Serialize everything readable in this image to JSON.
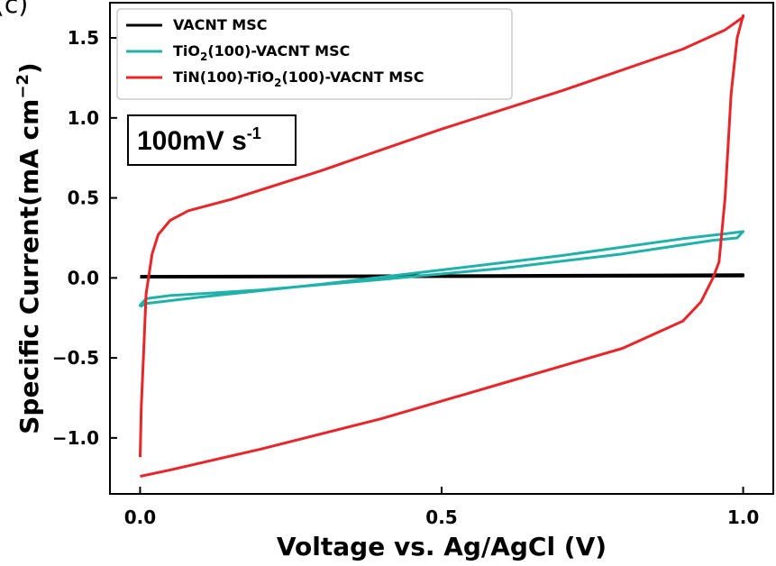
{
  "panel_label": "(c)",
  "chart_data": {
    "type": "line",
    "xlabel": "Voltage vs. Ag/AgCl (V)",
    "ylabel": {
      "main": "Specific Current(mA cm",
      "sup": "−2",
      "close": ")"
    },
    "xlim": [
      -0.05,
      1.05
    ],
    "ylim": [
      -1.35,
      1.72
    ],
    "xticks": [
      {
        "value": 0.0,
        "label": "0.0"
      },
      {
        "value": 0.5,
        "label": "0.5"
      },
      {
        "value": 1.0,
        "label": "1.0"
      }
    ],
    "yticks": [
      {
        "value": -1.0,
        "label": "−1.0"
      },
      {
        "value": -0.5,
        "label": "−0.5"
      },
      {
        "value": 0.0,
        "label": "0.0"
      },
      {
        "value": 0.5,
        "label": "0.5"
      },
      {
        "value": 1.0,
        "label": "1.0"
      },
      {
        "value": 1.5,
        "label": "1.5"
      }
    ],
    "grid": false,
    "legend_position": "top-left",
    "annotation": {
      "text": "100mV s",
      "sup": "-1"
    },
    "series": [
      {
        "name": "VACNT MSC",
        "legend": {
          "parts": [
            {
              "t": "VACNT MSC"
            }
          ]
        },
        "color": "#000000",
        "points": [
          [
            0.0,
            0.005
          ],
          [
            0.5,
            0.008
          ],
          [
            1.0,
            0.012
          ],
          [
            1.0,
            0.02
          ],
          [
            0.5,
            0.014
          ],
          [
            0.0,
            0.01
          ]
        ]
      },
      {
        "name": "TiO2(100)-VACNT MSC",
        "legend": {
          "parts": [
            {
              "t": "TiO"
            },
            {
              "t": "2",
              "sub": true
            },
            {
              "t": "(100)-VACNT MSC"
            }
          ]
        },
        "color": "#20B2AA",
        "points": [
          [
            0.0,
            -0.18
          ],
          [
            0.0,
            -0.17
          ],
          [
            0.01,
            -0.13
          ],
          [
            0.05,
            -0.11
          ],
          [
            0.2,
            -0.075
          ],
          [
            0.4,
            -0.01
          ],
          [
            0.6,
            0.06
          ],
          [
            0.8,
            0.15
          ],
          [
            0.95,
            0.235
          ],
          [
            0.99,
            0.25
          ],
          [
            1.0,
            0.29
          ],
          [
            0.98,
            0.28
          ],
          [
            0.9,
            0.245
          ],
          [
            0.7,
            0.14
          ],
          [
            0.5,
            0.05
          ],
          [
            0.3,
            -0.04
          ],
          [
            0.1,
            -0.12
          ],
          [
            0.01,
            -0.16
          ],
          [
            0.0,
            -0.18
          ]
        ]
      },
      {
        "name": "TiN(100)-TiO2(100)-VACNT MSC",
        "legend": {
          "parts": [
            {
              "t": "TiN(100)-TiO"
            },
            {
              "t": "2",
              "sub": true
            },
            {
              "t": "(100)-VACNT MSC"
            }
          ]
        },
        "color": "#E8262A",
        "points": [
          [
            0.0,
            -1.12
          ],
          [
            0.002,
            -0.8
          ],
          [
            0.006,
            -0.45
          ],
          [
            0.01,
            -0.1
          ],
          [
            0.02,
            0.15
          ],
          [
            0.03,
            0.27
          ],
          [
            0.05,
            0.36
          ],
          [
            0.08,
            0.42
          ],
          [
            0.15,
            0.49
          ],
          [
            0.3,
            0.67
          ],
          [
            0.5,
            0.93
          ],
          [
            0.7,
            1.17
          ],
          [
            0.9,
            1.43
          ],
          [
            0.97,
            1.55
          ],
          [
            1.0,
            1.63
          ],
          [
            1.0,
            1.64
          ],
          [
            0.99,
            1.5
          ],
          [
            0.98,
            1.15
          ],
          [
            0.97,
            0.5
          ],
          [
            0.96,
            0.1
          ],
          [
            0.95,
            0.0
          ],
          [
            0.93,
            -0.15
          ],
          [
            0.9,
            -0.27
          ],
          [
            0.8,
            -0.44
          ],
          [
            0.6,
            -0.66
          ],
          [
            0.4,
            -0.88
          ],
          [
            0.2,
            -1.07
          ],
          [
            0.05,
            -1.2
          ],
          [
            0.0,
            -1.24
          ]
        ]
      }
    ]
  }
}
